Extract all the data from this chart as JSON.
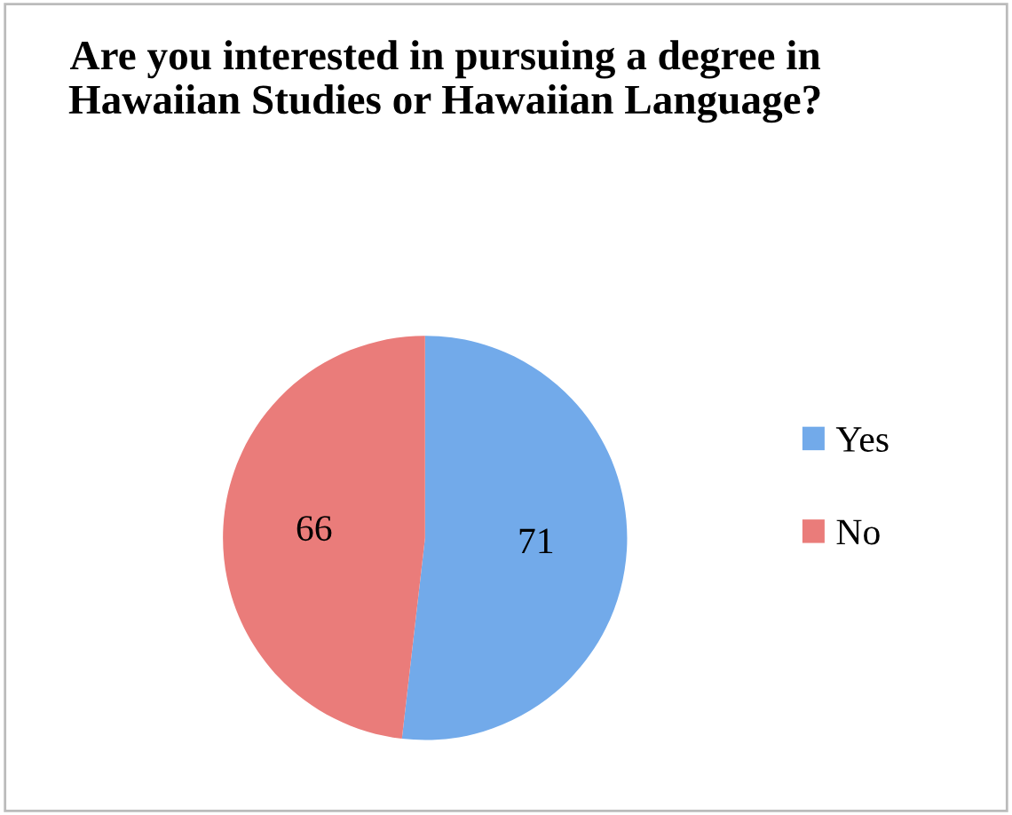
{
  "chart_data": {
    "type": "pie",
    "title": "Are you interested in pursuing a degree in Hawaiian Studies or Hawaiian Language?",
    "categories": [
      "Yes",
      "No"
    ],
    "values": [
      71,
      66
    ],
    "colors": [
      "#72aaea",
      "#ea7c7a"
    ],
    "data_labels": true,
    "legend": "right"
  }
}
